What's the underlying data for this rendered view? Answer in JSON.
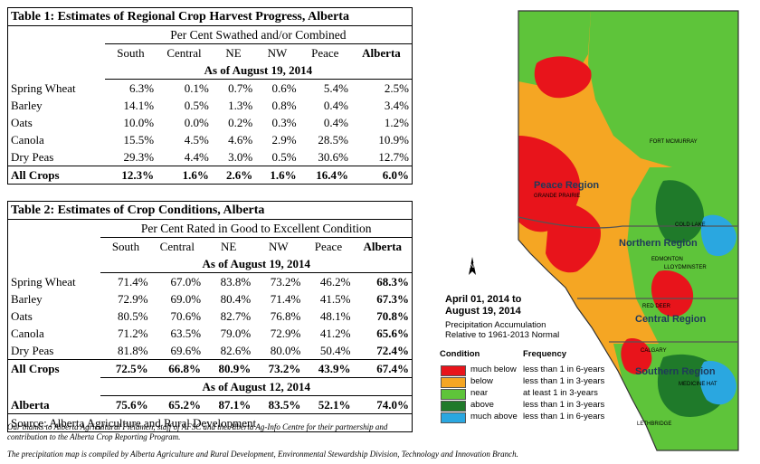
{
  "table1": {
    "title": "Table 1: Estimates of Regional Crop Harvest Progress, Alberta",
    "subtitle": "Per Cent Swathed and/or Combined",
    "columns": [
      "South",
      "Central",
      "NE",
      "NW",
      "Peace",
      "Alberta"
    ],
    "as_of": "As of August 19, 2014",
    "rows": [
      {
        "crop": "Spring Wheat",
        "values": [
          "6.3%",
          "0.1%",
          "0.7%",
          "0.6%",
          "5.4%",
          "2.5%"
        ]
      },
      {
        "crop": "Barley",
        "values": [
          "14.1%",
          "0.5%",
          "1.3%",
          "0.8%",
          "0.4%",
          "3.4%"
        ]
      },
      {
        "crop": "Oats",
        "values": [
          "10.0%",
          "0.0%",
          "0.2%",
          "0.3%",
          "0.4%",
          "1.2%"
        ]
      },
      {
        "crop": "Canola",
        "values": [
          "15.5%",
          "4.5%",
          "4.6%",
          "2.9%",
          "28.5%",
          "10.9%"
        ]
      },
      {
        "crop": "Dry Peas",
        "values": [
          "29.3%",
          "4.4%",
          "3.0%",
          "0.5%",
          "30.6%",
          "12.7%"
        ]
      },
      {
        "crop": "All Crops",
        "values": [
          "12.3%",
          "1.6%",
          "2.6%",
          "1.6%",
          "16.4%",
          "6.0%"
        ]
      }
    ]
  },
  "table2": {
    "title": "Table 2: Estimates of Crop Conditions, Alberta",
    "subtitle": "Per Cent Rated in Good to Excellent Condition",
    "columns": [
      "South",
      "Central",
      "NE",
      "NW",
      "Peace",
      "Alberta"
    ],
    "as_of": "As of August 19, 2014",
    "rows": [
      {
        "crop": "Spring Wheat",
        "values": [
          "71.4%",
          "67.0%",
          "83.8%",
          "73.2%",
          "46.2%",
          "68.3%"
        ]
      },
      {
        "crop": "Barley",
        "values": [
          "72.9%",
          "69.0%",
          "80.4%",
          "71.4%",
          "41.5%",
          "67.3%"
        ]
      },
      {
        "crop": "Oats",
        "values": [
          "80.5%",
          "70.6%",
          "82.7%",
          "76.8%",
          "48.1%",
          "70.8%"
        ]
      },
      {
        "crop": "Canola",
        "values": [
          "71.2%",
          "63.5%",
          "79.0%",
          "72.9%",
          "41.2%",
          "65.6%"
        ]
      },
      {
        "crop": "Dry Peas",
        "values": [
          "81.8%",
          "69.6%",
          "82.6%",
          "80.0%",
          "50.4%",
          "72.4%"
        ]
      },
      {
        "crop": "All Crops",
        "values": [
          "72.5%",
          "66.8%",
          "80.9%",
          "73.2%",
          "43.9%",
          "67.4%"
        ]
      }
    ],
    "as_of_prev": "As of August 12, 2014",
    "prev_row": {
      "crop": "Alberta",
      "values": [
        "75.6%",
        "65.2%",
        "87.1%",
        "83.5%",
        "52.1%",
        "74.0%"
      ]
    },
    "source": "Source: Alberta Agriculture and Rural Development"
  },
  "footnotes": {
    "thanks_1": "Our thanks to Alberta Agricultural Fieldmen, staff of AFSC and the Alberta Ag-Info Centre for their partnership and",
    "thanks_2": "contribution to the Alberta Crop Reporting Program.",
    "map_credit": "The precipitation map is compiled by Alberta Agriculture and Rural Development,  Environmental Stewardship Division, Technology and Innovation Branch."
  },
  "map": {
    "cities": {
      "fort_mcmurray": "FORT MCMURRAY",
      "grande_prairie": "GRANDE PRAIRIE",
      "cold_lake": "COLD LAKE",
      "edmonton": "EDMONTON",
      "lloydminster": "LLOYDMINSTER",
      "red_deer": "RED DEER",
      "calgary": "CALGARY",
      "medicine_hat": "MEDICINE HAT",
      "lethbridge": "LETHBRIDGE"
    },
    "regions": {
      "peace": "Peace Region",
      "northern": "Northern Region",
      "central": "Central Region",
      "southern": "Southern Region"
    },
    "north_letter": "N",
    "title_1": "April 01, 2014 to",
    "title_2": "August 19, 2014",
    "subtitle_1": "Precipitation Accumulation",
    "subtitle_2": "Relative to 1961-2013 Normal",
    "legend_headers": {
      "condition": "Condition",
      "frequency": "Frequency"
    },
    "legend": [
      {
        "condition": "much below",
        "frequency": "less than 1 in 6-years",
        "color": "#e8141b"
      },
      {
        "condition": "below",
        "frequency": "less than 1 in 3-years",
        "color": "#f5a623"
      },
      {
        "condition": "near",
        "frequency": "at least 1 in 3-years",
        "color": "#5ec43a"
      },
      {
        "condition": "above",
        "frequency": "less than 1 in 3-years",
        "color": "#1f7a2a"
      },
      {
        "condition": "much above",
        "frequency": "less than 1 in 6-years",
        "color": "#2aa7e0"
      }
    ]
  }
}
